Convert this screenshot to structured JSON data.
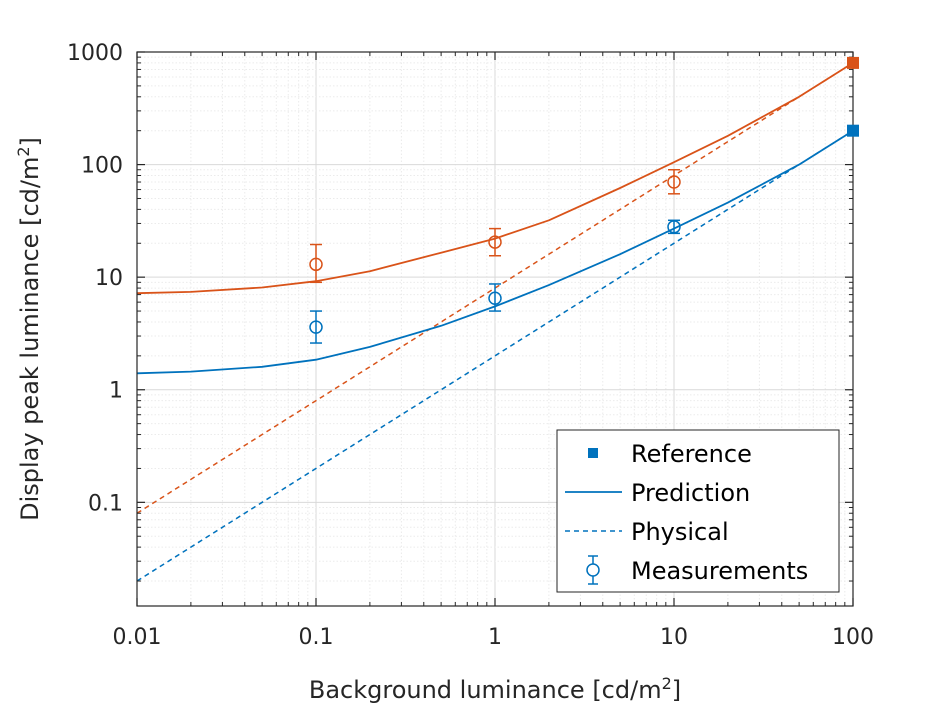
{
  "chart_data": {
    "type": "line",
    "xlabel": "Background luminance [cd/m",
    "xlabel_sup": "2",
    "xlabel_end": "]",
    "ylabel": "Display peak luminance [cd/m",
    "ylabel_sup": "2",
    "ylabel_end": "]",
    "xscale": "log",
    "yscale": "log",
    "xlim": [
      0.01,
      100
    ],
    "ylim": [
      0.012,
      1000
    ],
    "x_ticks": [
      0.01,
      0.1,
      1,
      10,
      100
    ],
    "x_tick_labels": [
      "0.01",
      "0.1",
      "1",
      "10",
      "100"
    ],
    "y_ticks": [
      0.1,
      1,
      10,
      100,
      1000
    ],
    "y_tick_labels": [
      "0.1",
      "1",
      "10",
      "100",
      "1000"
    ],
    "grid": true,
    "legend_placement": "bottom-right",
    "legend": {
      "reference": "Reference",
      "prediction": "Prediction",
      "physical": "Physical",
      "measurements": "Measurements"
    },
    "colors": {
      "blue": "#0072BD",
      "orange": "#D95319"
    },
    "groups": [
      {
        "color": "#D95319",
        "reference": {
          "x": 100,
          "y": 800
        },
        "prediction": {
          "x": [
            0.01,
            0.02,
            0.05,
            0.1,
            0.2,
            0.5,
            1,
            2,
            5,
            10,
            20,
            50,
            100
          ],
          "y": [
            7.2,
            7.4,
            8.1,
            9.2,
            11.3,
            16.5,
            22,
            32,
            62,
            105,
            180,
            400,
            800
          ]
        },
        "physical": {
          "x": [
            0.01,
            100
          ],
          "y": [
            0.08,
            800
          ]
        },
        "measurements": {
          "x": [
            0.1,
            1,
            10
          ],
          "y": [
            13,
            20.5,
            70
          ],
          "y_low": [
            9,
            15.5,
            55
          ],
          "y_high": [
            19.5,
            27,
            90
          ]
        }
      },
      {
        "color": "#0072BD",
        "reference": {
          "x": 100,
          "y": 200
        },
        "prediction": {
          "x": [
            0.01,
            0.02,
            0.05,
            0.1,
            0.2,
            0.5,
            1,
            2,
            5,
            10,
            20,
            50,
            100
          ],
          "y": [
            1.4,
            1.45,
            1.6,
            1.85,
            2.4,
            3.7,
            5.5,
            8.5,
            16,
            27,
            46,
            100,
            200
          ]
        },
        "physical": {
          "x": [
            0.01,
            100
          ],
          "y": [
            0.02,
            200
          ]
        },
        "measurements": {
          "x": [
            0.1,
            1,
            10
          ],
          "y": [
            3.6,
            6.5,
            28
          ],
          "y_low": [
            2.6,
            5,
            24.5
          ],
          "y_high": [
            5,
            8.7,
            32
          ]
        }
      }
    ]
  }
}
